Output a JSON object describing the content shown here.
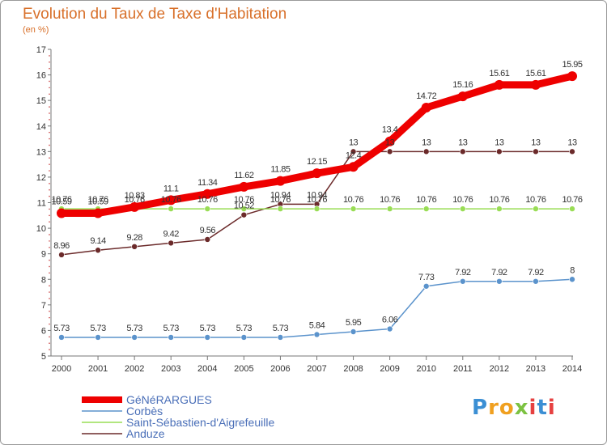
{
  "chart_data": {
    "type": "line",
    "title": "Evolution du Taux de Taxe d'Habitation",
    "subtitle": "(en %)",
    "xlabel": "",
    "ylabel": "",
    "x": [
      "2000",
      "2001",
      "2002",
      "2003",
      "2004",
      "2005",
      "2006",
      "2007",
      "2008",
      "2009",
      "2010",
      "2011",
      "2012",
      "2013",
      "2014"
    ],
    "ylim": [
      5,
      17
    ],
    "yticks": [
      5,
      6,
      7,
      8,
      9,
      10,
      11,
      12,
      13,
      14,
      15,
      16,
      17
    ],
    "grid": false,
    "legend_position": "bottom-left",
    "series": [
      {
        "name": "GéNéRARGUES",
        "color": "#ee0000",
        "values": [
          10.59,
          10.59,
          10.83,
          11.1,
          11.34,
          11.62,
          11.85,
          12.15,
          12.4,
          13.4,
          14.72,
          15.16,
          15.61,
          15.61,
          15.95
        ],
        "labels": [
          "10.59",
          "10.59",
          "10.83",
          "11.1",
          "11.34",
          "11.62",
          "11.85",
          "12.15",
          "12.4",
          "13.4",
          "14.72",
          "15.16",
          "15.61",
          "15.61",
          "15.95"
        ]
      },
      {
        "name": "Corbès",
        "color": "#5b93cc",
        "values": [
          5.73,
          5.73,
          5.73,
          5.73,
          5.73,
          5.73,
          5.73,
          5.84,
          5.95,
          6.06,
          7.73,
          7.92,
          7.92,
          7.92,
          8
        ],
        "labels": [
          "5.73",
          "5.73",
          "5.73",
          "5.73",
          "5.73",
          "5.73",
          "5.73",
          "5.84",
          "5.95",
          "6.06",
          "7.73",
          "7.92",
          "7.92",
          "7.92",
          "8"
        ]
      },
      {
        "name": "Saint-Sébastien-d'Aigrefeuille",
        "color": "#99dd55",
        "values": [
          10.76,
          10.76,
          10.76,
          10.76,
          10.76,
          10.76,
          10.76,
          10.76,
          10.76,
          10.76,
          10.76,
          10.76,
          10.76,
          10.76,
          10.76
        ],
        "labels": [
          "10.76",
          "10.76",
          "10.76",
          "10.76",
          "10.76",
          "10.76",
          "10.76",
          "10.76",
          "10.76",
          "10.76",
          "10.76",
          "10.76",
          "10.76",
          "10.76",
          "10.76"
        ]
      },
      {
        "name": "Anduze",
        "color": "#6b2a2a",
        "values": [
          8.96,
          9.14,
          9.28,
          9.42,
          9.56,
          10.52,
          10.94,
          10.94,
          13,
          13,
          13,
          13,
          13,
          13,
          13
        ],
        "labels": [
          "8.96",
          "9.14",
          "9.28",
          "9.42",
          "9.56",
          "10.52",
          "10.94",
          "10.94",
          "13",
          "13",
          "13",
          "13",
          "13",
          "13",
          "13"
        ]
      }
    ]
  },
  "brand": {
    "logo_letters": [
      {
        "char": "P",
        "color": "#3b8fd4"
      },
      {
        "char": "r",
        "color": "#f0a020"
      },
      {
        "char": "o",
        "color": "#f0a020"
      },
      {
        "char": "x",
        "color": "#7cc242"
      },
      {
        "char": "i",
        "color": "#e64040"
      },
      {
        "char": "t",
        "color": "#3b8fd4"
      },
      {
        "char": "i",
        "color": "#e64040"
      }
    ]
  },
  "colors": {
    "title": "#d8702a",
    "axis": "#777777",
    "tick_text": "#333333",
    "legend_text": "#4a6fb8"
  }
}
